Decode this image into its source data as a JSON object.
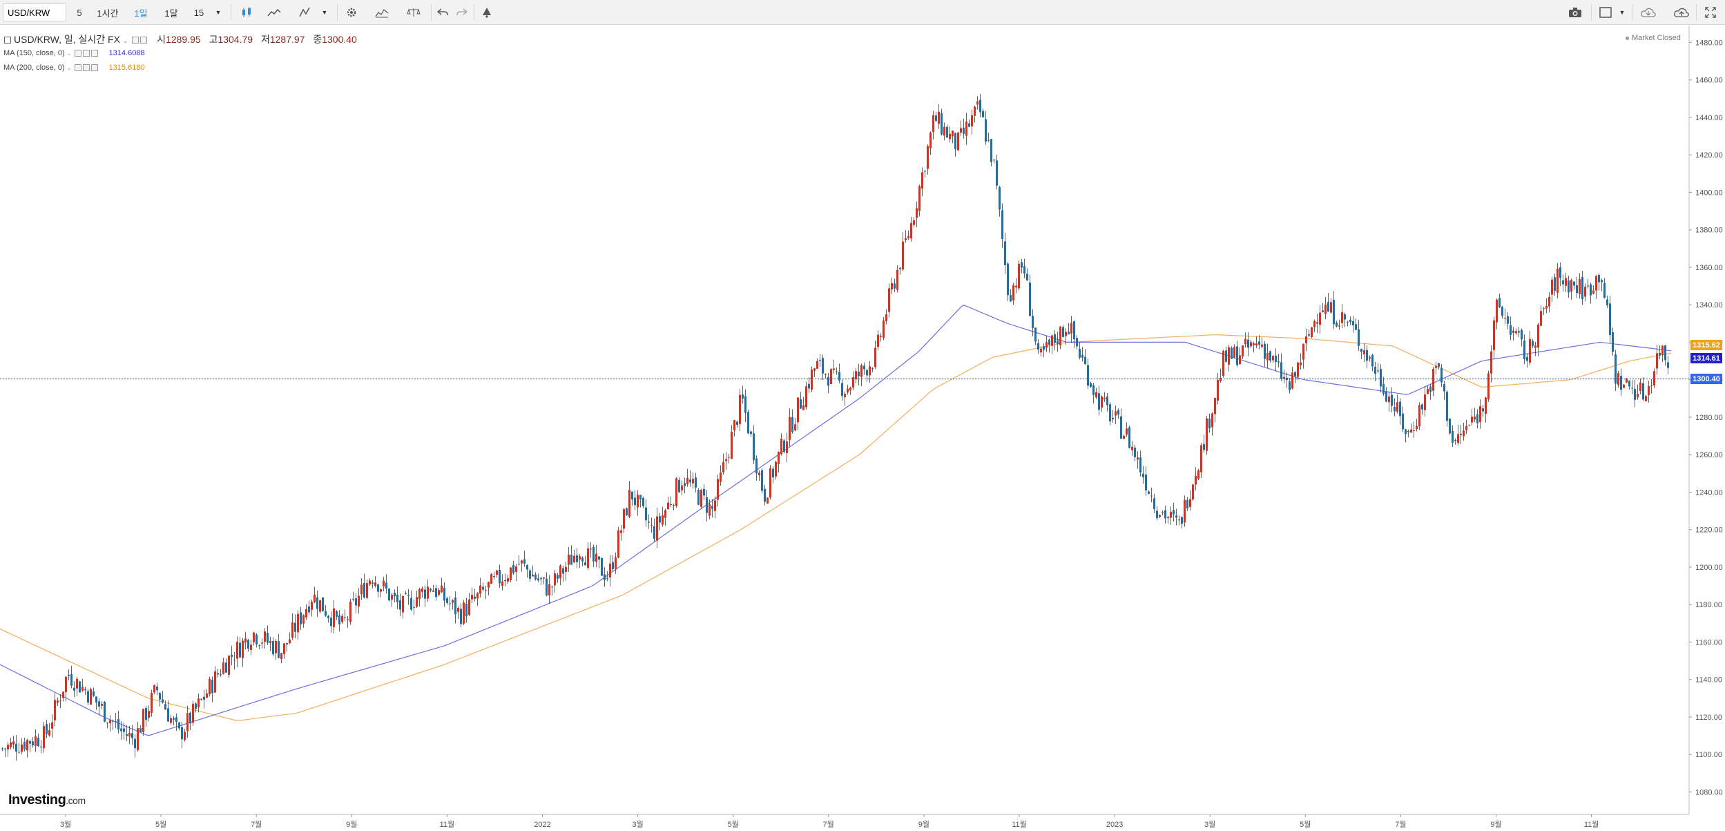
{
  "toolbar": {
    "symbol": "USD/KRW",
    "intervals": [
      "5",
      "1시간",
      "1일",
      "1달"
    ],
    "active_interval": "1일",
    "interval_select": "15"
  },
  "legend": {
    "title": "USD/KRW, 일, 실시간 FX",
    "open_label": "시",
    "open": "1289.95",
    "high_label": "고",
    "high": "1304.79",
    "low_label": "저",
    "low": "1287.97",
    "close_label": "종",
    "close": "1300.40",
    "ma150_label": "MA (150, close, 0)",
    "ma150_value": "1314.6088",
    "ma200_label": "MA (200, close, 0)",
    "ma200_value": "1315.6180",
    "market_status": "Market Closed"
  },
  "price_tags": {
    "ma200": "1315.62",
    "ma150": "1314.61",
    "last": "1300.40"
  },
  "colors": {
    "up_candle": "#c0392b",
    "down_candle": "#2c6b96",
    "ma150": "#5555dd",
    "ma200": "#f0a040",
    "last_line": "#2255dd",
    "accent": "#2a8fd8"
  },
  "brand": {
    "logo_text": "Investing",
    "logo_suffix": ".com"
  },
  "chart_data": {
    "type": "candlestick",
    "y_ticks": [
      1080,
      1100,
      1120,
      1140,
      1160,
      1180,
      1200,
      1220,
      1240,
      1260,
      1280,
      1300,
      1320,
      1340,
      1360,
      1380,
      1400,
      1420,
      1440,
      1460,
      1480
    ],
    "y_tick_labels": [
      "1080.00",
      "1100.00",
      "1120.00",
      "1140.00",
      "1160.00",
      "1180.00",
      "1200.00",
      "1220.00",
      "1240.00",
      "1260.00",
      "1280.00",
      "1300.00",
      "1320.00",
      "1340.00",
      "1360.00",
      "1380.00",
      "1400.00",
      "1420.00",
      "1440.00",
      "1460.00",
      "1480.00"
    ],
    "ylim": [
      1068,
      1489
    ],
    "x_tick_labels": [
      "3월",
      "5월",
      "7월",
      "9월",
      "11월",
      "2022",
      "3월",
      "5월",
      "7월",
      "9월",
      "11월",
      "2023",
      "3월",
      "5월",
      "7월",
      "9월",
      "11월"
    ],
    "price_path": [
      [
        0,
        1103
      ],
      [
        3,
        1110
      ],
      [
        4.5,
        1143
      ],
      [
        6,
        1132
      ],
      [
        8,
        1113
      ],
      [
        9,
        1108
      ],
      [
        10.5,
        1135
      ],
      [
        12,
        1110
      ],
      [
        13.5,
        1128
      ],
      [
        15,
        1148
      ],
      [
        17,
        1165
      ],
      [
        19,
        1155
      ],
      [
        21,
        1185
      ],
      [
        23,
        1168
      ],
      [
        25,
        1196
      ],
      [
        27,
        1178
      ],
      [
        29,
        1190
      ],
      [
        31,
        1175
      ],
      [
        33,
        1190
      ],
      [
        35,
        1202
      ],
      [
        37,
        1188
      ],
      [
        39,
        1210
      ],
      [
        41,
        1195
      ],
      [
        42.5,
        1240
      ],
      [
        44,
        1218
      ],
      [
        46,
        1248
      ],
      [
        48,
        1230
      ],
      [
        50,
        1290
      ],
      [
        51.5,
        1238
      ],
      [
        53,
        1270
      ],
      [
        55,
        1308
      ],
      [
        57,
        1295
      ],
      [
        59,
        1312
      ],
      [
        60,
        1345
      ],
      [
        61.5,
        1385
      ],
      [
        63,
        1440
      ],
      [
        64.5,
        1425
      ],
      [
        66,
        1445
      ],
      [
        67,
        1415
      ],
      [
        68,
        1345
      ],
      [
        69,
        1362
      ],
      [
        70,
        1310
      ],
      [
        72,
        1330
      ],
      [
        74,
        1290
      ],
      [
        76,
        1270
      ],
      [
        78,
        1232
      ],
      [
        79.5,
        1222
      ],
      [
        81,
        1262
      ],
      [
        82.5,
        1310
      ],
      [
        85,
        1320
      ],
      [
        87,
        1295
      ],
      [
        89,
        1340
      ],
      [
        91,
        1330
      ],
      [
        93,
        1302
      ],
      [
        95,
        1270
      ],
      [
        97,
        1308
      ],
      [
        98,
        1265
      ],
      [
        100,
        1285
      ],
      [
        101,
        1340
      ],
      [
        103,
        1312
      ],
      [
        105,
        1355
      ],
      [
        107,
        1347
      ],
      [
        108,
        1358
      ],
      [
        109,
        1300
      ],
      [
        111,
        1292
      ],
      [
        112,
        1318
      ],
      [
        113,
        1300
      ],
      [
        113.7,
        1300.4
      ]
    ],
    "ma150_path": [
      [
        0,
        1148
      ],
      [
        7,
        1120
      ],
      [
        10,
        1110
      ],
      [
        20,
        1135
      ],
      [
        30,
        1158
      ],
      [
        40,
        1190
      ],
      [
        48,
        1235
      ],
      [
        58,
        1290
      ],
      [
        62,
        1315
      ],
      [
        65,
        1340
      ],
      [
        68,
        1330
      ],
      [
        72,
        1320
      ],
      [
        80,
        1320
      ],
      [
        88,
        1300
      ],
      [
        95,
        1292
      ],
      [
        100,
        1310
      ],
      [
        108,
        1320
      ],
      [
        113.7,
        1314.6
      ]
    ],
    "ma200_path": [
      [
        0,
        1167
      ],
      [
        10,
        1130
      ],
      [
        16,
        1118
      ],
      [
        20,
        1122
      ],
      [
        30,
        1148
      ],
      [
        42,
        1185
      ],
      [
        50,
        1220
      ],
      [
        58,
        1260
      ],
      [
        63,
        1295
      ],
      [
        67,
        1312
      ],
      [
        72,
        1320
      ],
      [
        82,
        1324
      ],
      [
        88,
        1322
      ],
      [
        94,
        1318
      ],
      [
        100,
        1296
      ],
      [
        106,
        1300
      ],
      [
        110,
        1310
      ],
      [
        113.7,
        1315.6
      ]
    ]
  }
}
